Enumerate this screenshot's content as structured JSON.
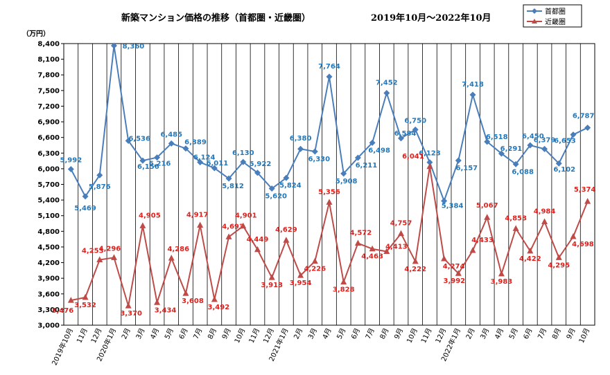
{
  "chart_data": {
    "type": "line",
    "title": "新築マンション価格の推移（首都圏・近畿圏）",
    "subtitle": "2019年10月～2022年10月",
    "ylabel": "（万円）",
    "xlabel": "",
    "ylim": [
      3000,
      8400
    ],
    "yticks": [
      3000,
      3300,
      3600,
      3900,
      4200,
      4500,
      4800,
      5100,
      5400,
      5700,
      6000,
      6300,
      6600,
      6900,
      7200,
      7500,
      7800,
      8100,
      8400
    ],
    "ytick_labels": [
      "3,000",
      "3,300",
      "3,600",
      "3,900",
      "4,200",
      "4,500",
      "4,800",
      "5,100",
      "5,400",
      "5,700",
      "6,000",
      "6,300",
      "6,600",
      "6,900",
      "7,200",
      "7,500",
      "7,800",
      "8,100",
      "8,400"
    ],
    "grid": "vertical",
    "legend_position": "top-right",
    "categories": [
      "2019年10月",
      "11月",
      "12月",
      "2020年1月",
      "2月",
      "3月",
      "4月",
      "5月",
      "6月",
      "7月",
      "8月",
      "9月",
      "10月",
      "11月",
      "12月",
      "2021年1月",
      "2月",
      "3月",
      "4月",
      "5月",
      "6月",
      "7月",
      "8月",
      "9月",
      "10月",
      "11月",
      "12月",
      "2022年1月",
      "2月",
      "3月",
      "4月",
      "5月",
      "6月",
      "7月",
      "8月",
      "9月",
      "10月"
    ],
    "series": [
      {
        "name": "首都圏",
        "color": "#4a7ebb",
        "marker": "diamond",
        "values": [
          5992,
          5469,
          5876,
          8360,
          6536,
          6156,
          6216,
          6485,
          6389,
          6124,
          6011,
          5812,
          6130,
          5922,
          5620,
          5824,
          6380,
          6330,
          7764,
          5908,
          6211,
          6498,
          7452,
          6584,
          6750,
          6123,
          5384,
          6157,
          7418,
          6518,
          6291,
          6088,
          6450,
          6379,
          6102,
          6653,
          6787
        ],
        "labels": [
          "5,992",
          "5,469",
          "5,876",
          "8,360",
          "6,536",
          "6,156",
          "6,216",
          "6,485",
          "6,389",
          "6,124",
          "6,011",
          "5,812",
          "6,130",
          "5,922",
          "5,620",
          "5,824",
          "6,380",
          "6,330",
          "7,764",
          "5,908",
          "6,211",
          "6,498",
          "7,452",
          "6,584",
          "6,750",
          "6,123",
          "5,384",
          "6,157",
          "7,418",
          "6,518",
          "6,291",
          "6,088",
          "6,450",
          "6,379",
          "6,102",
          "6,653",
          "6,787"
        ]
      },
      {
        "name": "近畿圏",
        "color": "#be4b48",
        "marker": "triangle",
        "values": [
          3476,
          3532,
          4253,
          4296,
          3370,
          4905,
          3434,
          4286,
          3608,
          4917,
          3492,
          4693,
          4901,
          4449,
          3913,
          4629,
          3954,
          4226,
          5356,
          3828,
          4572,
          4463,
          4413,
          4757,
          4222,
          6041,
          4274,
          3992,
          4433,
          5067,
          3983,
          4853,
          4422,
          4984,
          4295,
          4698,
          5374
        ],
        "labels": [
          "3,476",
          "3,532",
          "4,253",
          "4,296",
          "3,370",
          "4,905",
          "3,434",
          "4,286",
          "3,608",
          "4,917",
          "3,492",
          "4,693",
          "4,901",
          "4,449",
          "3,913",
          "4,629",
          "3,954",
          "4,226",
          "5,356",
          "3,828",
          "4,572",
          "4,463",
          "4,413",
          "4,757",
          "4,222",
          "6,041",
          "4,274",
          "3,992",
          "4,433",
          "5,067",
          "3,983",
          "4,853",
          "4,422",
          "4,984",
          "4,295",
          "4,698",
          "5,374"
        ]
      }
    ]
  }
}
